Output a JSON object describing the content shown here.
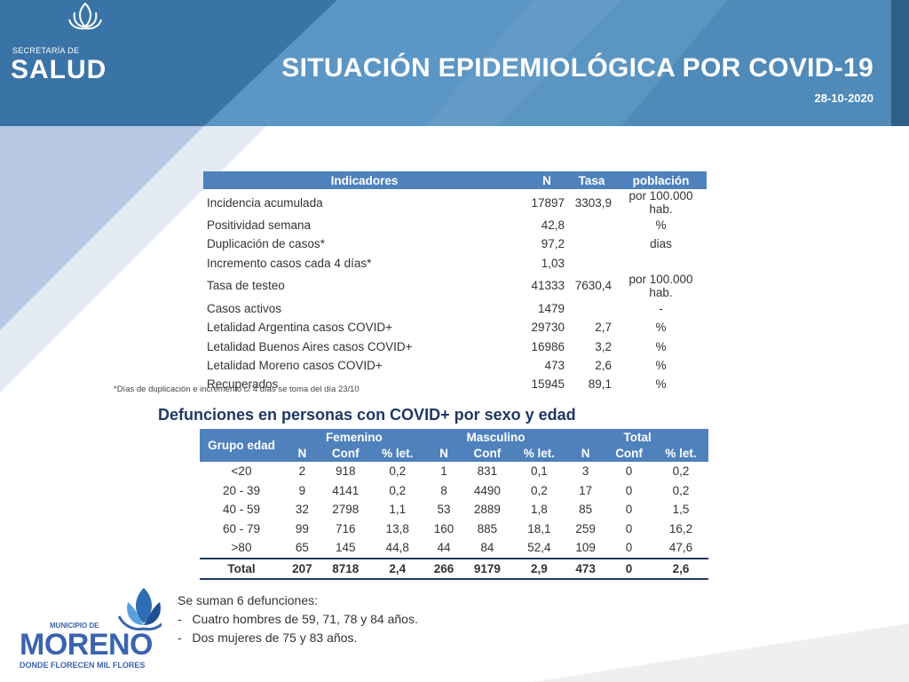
{
  "header": {
    "logo_small": "SECRETARÍA DE",
    "logo_big": "SALUD",
    "title": "SITUACIÓN EPIDEMIOLÓGICA POR COVID-19",
    "date": "28-10-2020"
  },
  "indicators": {
    "headers": [
      "Indicadores",
      "N",
      "Tasa",
      "población"
    ],
    "rows": [
      {
        "name": "Incidencia acumulada",
        "n": "17897",
        "tasa": "3303,9",
        "poblacion": "por 100.000 hab."
      },
      {
        "name": "Positividad semana",
        "n": "42,8",
        "tasa": "",
        "poblacion": "%"
      },
      {
        "name": "Duplicación de casos*",
        "n": "97,2",
        "tasa": "",
        "poblacion": "dias"
      },
      {
        "name": "Incremento casos cada 4 días*",
        "n": "1,03",
        "tasa": "",
        "poblacion": ""
      },
      {
        "name": "Tasa de testeo",
        "n": "41333",
        "tasa": "7630,4",
        "poblacion": "por 100.000 hab."
      },
      {
        "name": "Casos activos",
        "n": "1479",
        "tasa": "",
        "poblacion": "-"
      },
      {
        "name": "Letalidad Argentina casos COVID+",
        "n": "29730",
        "tasa": "2,7",
        "poblacion": "%"
      },
      {
        "name": "Letalidad Buenos Aires casos COVID+",
        "n": "16986",
        "tasa": "3,2",
        "poblacion": "%"
      },
      {
        "name": "Letalidad Moreno casos COVID+",
        "n": "473",
        "tasa": "2,6",
        "poblacion": "%"
      },
      {
        "name": "Recuperados",
        "n": "15945",
        "tasa": "89,1",
        "poblacion": "%"
      }
    ],
    "footnote": "*Días de duplicación e incremento c/ 4 días se toma del día 23/10"
  },
  "deaths": {
    "title": "Defunciones en personas con COVID+ por sexo y edad",
    "group_header": "Grupo edad",
    "femenino": "Femenino",
    "masculino": "Masculino",
    "total": "Total",
    "sub_headers": [
      "N",
      "Conf",
      "% let.",
      "N",
      "Conf",
      "% let.",
      "N",
      "Conf",
      "% let."
    ],
    "rows": [
      [
        "<20",
        "2",
        "918",
        "0,2",
        "1",
        "831",
        "0,1",
        "3",
        "0",
        "0,2"
      ],
      [
        "20 - 39",
        "9",
        "4141",
        "0,2",
        "8",
        "4490",
        "0,2",
        "17",
        "0",
        "0,2"
      ],
      [
        "40 - 59",
        "32",
        "2798",
        "1,1",
        "53",
        "2889",
        "1,8",
        "85",
        "0",
        "1,5"
      ],
      [
        "60 - 79",
        "99",
        "716",
        "13,8",
        "160",
        "885",
        "18,1",
        "259",
        "0",
        "16,2"
      ],
      [
        ">80",
        "65",
        "145",
        "44,8",
        "44",
        "84",
        "52,4",
        "109",
        "0",
        "47,6"
      ]
    ],
    "total_row": [
      "Total",
      "207",
      "8718",
      "2,4",
      "266",
      "9179",
      "2,9",
      "473",
      "0",
      "2,6"
    ]
  },
  "notes": {
    "intro": "Se suman 6 defunciones:",
    "items": [
      "Cuatro hombres de 59, 71, 78 y 84 años.",
      "Dos mujeres de 75 y 83 años."
    ]
  },
  "footer_logo": {
    "pre": "MUNICIPIO DE",
    "name": "MORENO",
    "tagline": "DONDE FLORECEN MIL FLORES"
  },
  "colors": {
    "banner": "#3f7fae",
    "table_header": "#4f81bd",
    "title_blue": "#1f3864",
    "logo_blue": "#3b64ad"
  }
}
